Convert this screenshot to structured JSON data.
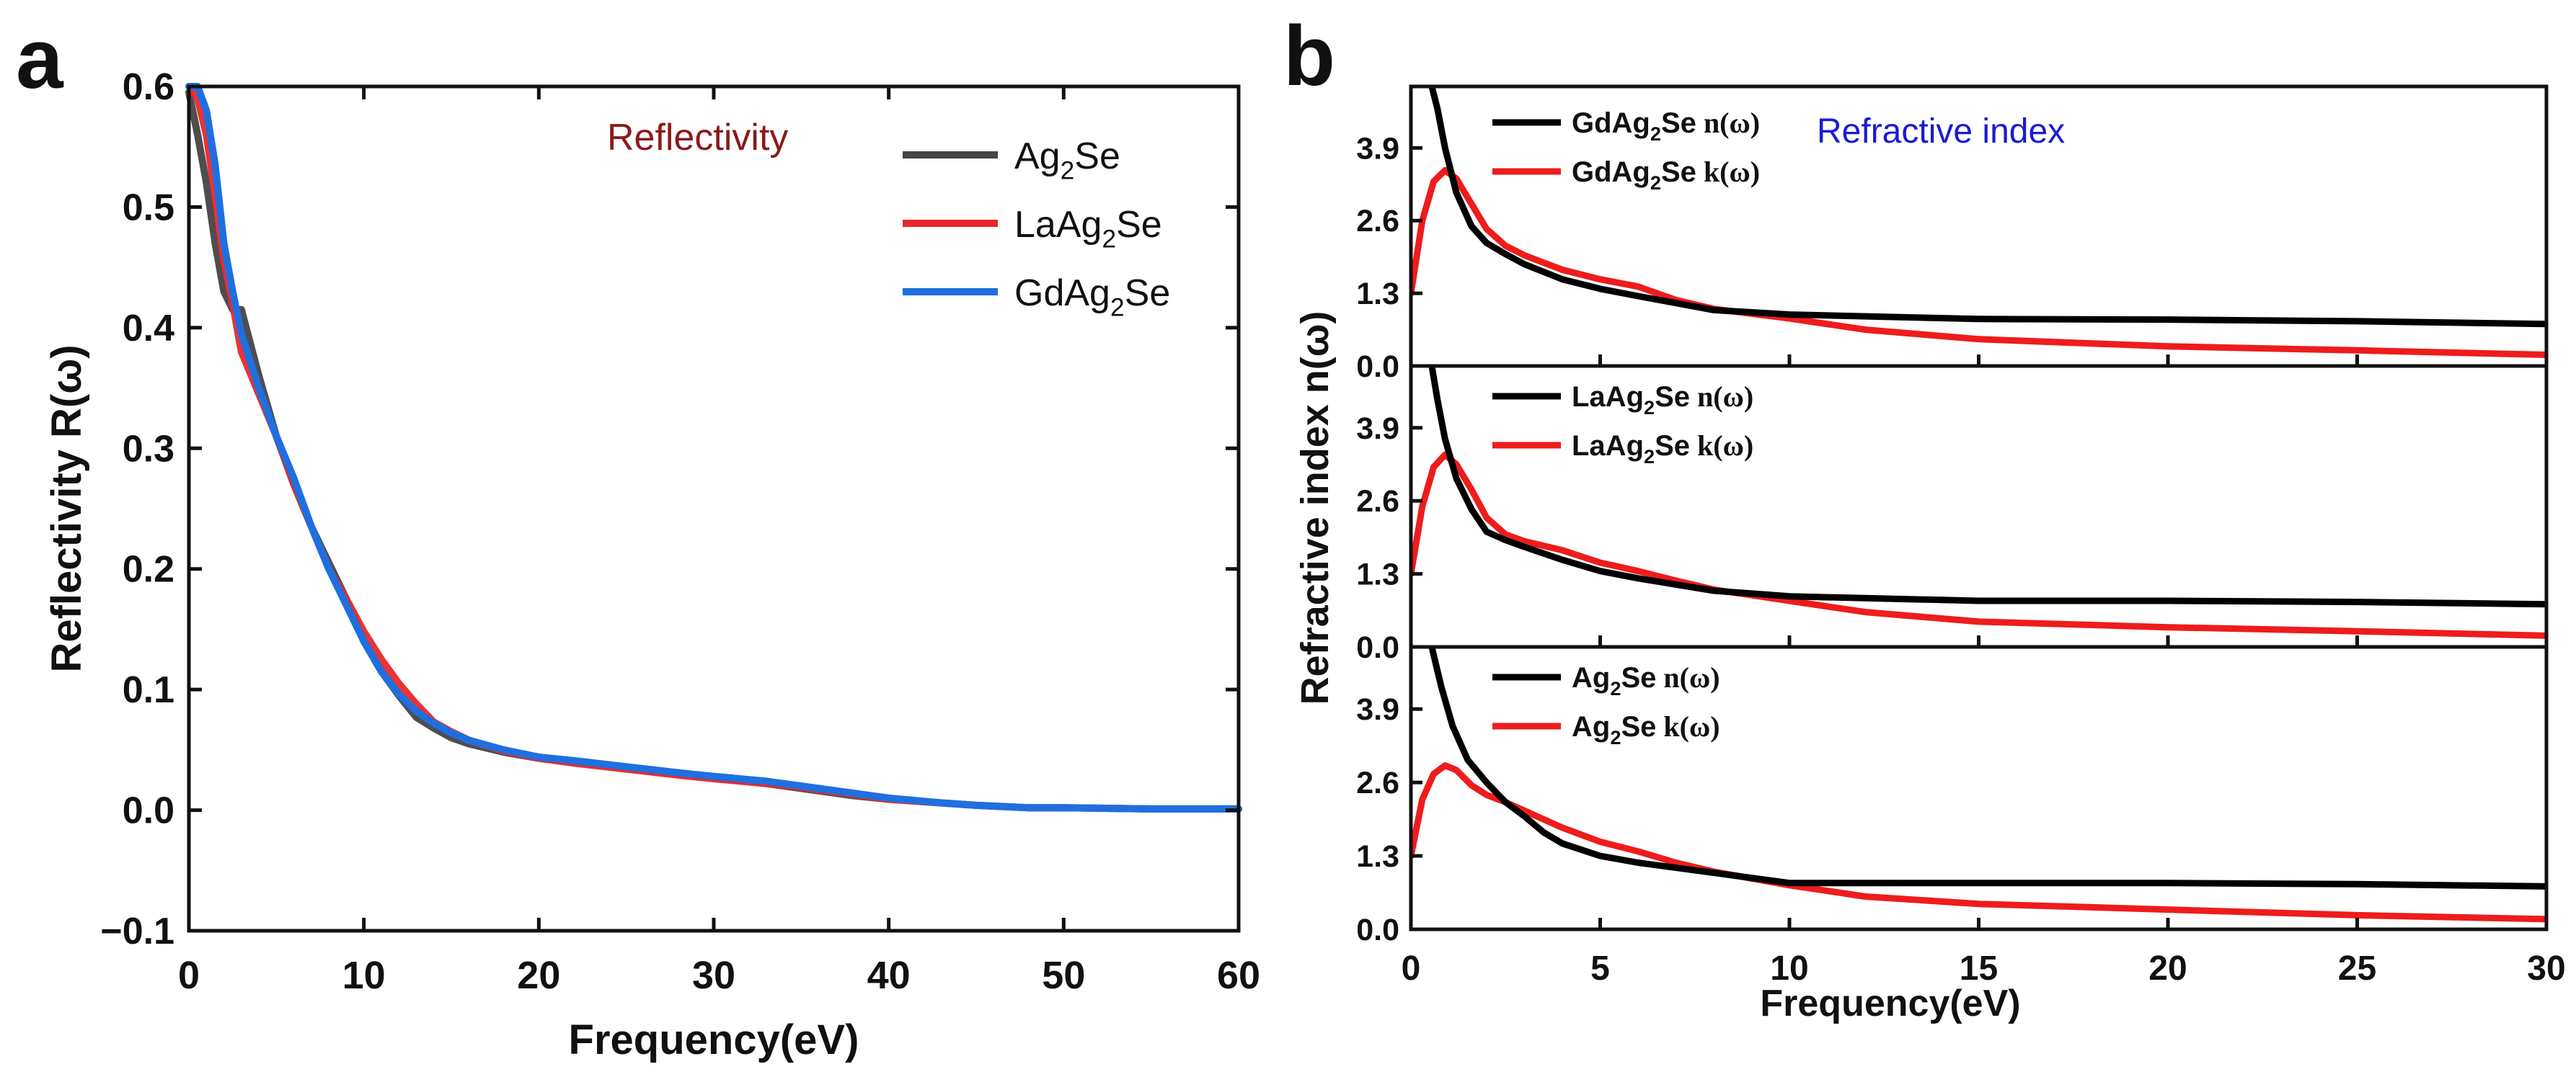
{
  "figure": {
    "panel_a_letter": "a",
    "panel_b_letter": "b"
  },
  "chart_data": [
    {
      "type": "line",
      "panel": "a",
      "title": "",
      "annotation": "Reflectivity",
      "xlabel": "Frequency(eV)",
      "ylabel": "Reflectivity R(ω)",
      "xlim": [
        0,
        60
      ],
      "ylim": [
        -0.1,
        0.6
      ],
      "xticks": [
        0,
        10,
        20,
        30,
        40,
        50,
        60
      ],
      "yticks": [
        -0.1,
        0.0,
        0.1,
        0.2,
        0.3,
        0.4,
        0.5,
        0.6
      ],
      "legend_position": "top-right",
      "colors": {
        "annotation": "#8b1a1a"
      },
      "series": [
        {
          "name": "Ag2Se",
          "legend_base": "Ag",
          "legend_sub": "2",
          "legend_tail": "Se",
          "color": "#444444",
          "x": [
            0,
            0.5,
            1,
            1.5,
            2,
            2.5,
            3,
            4,
            5,
            6,
            7,
            8,
            9,
            10,
            11,
            12,
            13,
            14,
            15,
            16,
            18,
            20,
            22,
            25,
            28,
            30,
            33,
            35,
            38,
            40,
            43,
            45,
            48,
            50,
            55,
            60
          ],
          "y": [
            0.595,
            0.56,
            0.52,
            0.47,
            0.43,
            0.415,
            0.415,
            0.36,
            0.31,
            0.27,
            0.235,
            0.205,
            0.175,
            0.14,
            0.115,
            0.095,
            0.077,
            0.068,
            0.06,
            0.055,
            0.048,
            0.043,
            0.04,
            0.035,
            0.03,
            0.027,
            0.022,
            0.018,
            0.012,
            0.009,
            0.006,
            0.004,
            0.002,
            0.002,
            0.001,
            0.001
          ]
        },
        {
          "name": "LaAg2Se",
          "legend_base": "LaAg",
          "legend_sub": "2",
          "legend_tail": "Se",
          "color": "#e8282b",
          "x": [
            0,
            0.5,
            1,
            1.5,
            2,
            2.5,
            3,
            4,
            5,
            6,
            7,
            8,
            9,
            10,
            11,
            12,
            13,
            14,
            15,
            16,
            18,
            20,
            22,
            25,
            28,
            30,
            33,
            35,
            38,
            40,
            43,
            45,
            48,
            50,
            55,
            60
          ],
          "y": [
            0.6,
            0.59,
            0.56,
            0.51,
            0.455,
            0.42,
            0.38,
            0.345,
            0.31,
            0.27,
            0.235,
            0.2,
            0.175,
            0.148,
            0.125,
            0.105,
            0.088,
            0.073,
            0.065,
            0.058,
            0.049,
            0.043,
            0.039,
            0.034,
            0.029,
            0.026,
            0.022,
            0.019,
            0.013,
            0.009,
            0.006,
            0.004,
            0.002,
            0.002,
            0.001,
            0.001
          ]
        },
        {
          "name": "GdAg2Se",
          "legend_base": "GdAg",
          "legend_sub": "2",
          "legend_tail": "Se",
          "color": "#1f6fe0",
          "x": [
            0,
            0.5,
            1,
            1.5,
            2,
            2.5,
            3,
            4,
            5,
            6,
            7,
            8,
            9,
            10,
            11,
            12,
            13,
            14,
            15,
            16,
            18,
            20,
            22,
            25,
            28,
            30,
            33,
            35,
            38,
            40,
            43,
            45,
            48,
            50,
            55,
            60
          ],
          "y": [
            0.6,
            0.6,
            0.58,
            0.535,
            0.47,
            0.43,
            0.395,
            0.35,
            0.31,
            0.275,
            0.235,
            0.2,
            0.17,
            0.14,
            0.115,
            0.096,
            0.082,
            0.072,
            0.064,
            0.058,
            0.05,
            0.044,
            0.041,
            0.036,
            0.031,
            0.028,
            0.024,
            0.02,
            0.014,
            0.01,
            0.006,
            0.004,
            0.002,
            0.002,
            0.001,
            0.001
          ]
        }
      ]
    },
    {
      "type": "line",
      "panel": "b",
      "title": "",
      "annotation": "Refractive index",
      "xlabel": "Frequency(eV)",
      "ylabel": "Refractive index n(ω)",
      "xlim": [
        0,
        30
      ],
      "ylim": [
        0.0,
        5.0
      ],
      "xticks": [
        0,
        5,
        10,
        15,
        20,
        25,
        30
      ],
      "yticks": [
        0.0,
        1.3,
        2.6,
        3.9
      ],
      "legend_position": "top-left",
      "colors": {
        "annotation": "#1a1ad6",
        "n": "#000000",
        "k": "#ee1c1c"
      },
      "subplots": [
        {
          "compound": "GdAg2Se",
          "legend_base": "GdAg",
          "legend_sub": "2",
          "legend_tail": "Se",
          "n_label": "n(ω)",
          "k_label": "k(ω)",
          "n": {
            "x": [
              0.55,
              0.7,
              0.9,
              1.2,
              1.6,
              2,
              2.5,
              3,
              4,
              5,
              6,
              8,
              10,
              15,
              20,
              25,
              30
            ],
            "y": [
              5.0,
              4.6,
              3.9,
              3.1,
              2.5,
              2.2,
              2.0,
              1.82,
              1.55,
              1.38,
              1.25,
              1.0,
              0.92,
              0.84,
              0.83,
              0.8,
              0.75
            ]
          },
          "k": {
            "x": [
              0,
              0.3,
              0.6,
              0.9,
              1.2,
              1.6,
              2,
              2.5,
              3,
              4,
              5,
              6,
              7,
              8,
              10,
              12,
              15,
              20,
              25,
              30
            ],
            "y": [
              1.3,
              2.6,
              3.3,
              3.5,
              3.35,
              2.9,
              2.45,
              2.15,
              1.98,
              1.72,
              1.55,
              1.42,
              1.18,
              1.02,
              0.85,
              0.65,
              0.48,
              0.35,
              0.28,
              0.2
            ]
          }
        },
        {
          "compound": "LaAg2Se",
          "legend_base": "LaAg",
          "legend_sub": "2",
          "legend_tail": "Se",
          "n_label": "n(ω)",
          "k_label": "k(ω)",
          "n": {
            "x": [
              0.55,
              0.7,
              0.9,
              1.2,
              1.6,
              2,
              2.5,
              3,
              4,
              5,
              6,
              8,
              10,
              15,
              20,
              25,
              30
            ],
            "y": [
              5.0,
              4.4,
              3.7,
              3.0,
              2.45,
              2.05,
              1.9,
              1.78,
              1.55,
              1.35,
              1.22,
              1.0,
              0.9,
              0.82,
              0.82,
              0.8,
              0.76
            ]
          },
          "k": {
            "x": [
              0,
              0.3,
              0.6,
              0.9,
              1.2,
              1.6,
              2,
              2.5,
              3,
              4,
              5,
              6,
              7,
              8,
              10,
              12,
              15,
              20,
              25,
              30
            ],
            "y": [
              1.3,
              2.5,
              3.2,
              3.42,
              3.25,
              2.8,
              2.3,
              2.0,
              1.88,
              1.72,
              1.5,
              1.35,
              1.18,
              1.02,
              0.82,
              0.62,
              0.45,
              0.35,
              0.28,
              0.2
            ]
          }
        },
        {
          "compound": "Ag2Se",
          "legend_base": "Ag",
          "legend_sub": "2",
          "legend_tail": "Se",
          "n_label": "n(ω)",
          "k_label": "k(ω)",
          "n": {
            "x": [
              0.55,
              0.8,
              1.1,
              1.5,
              2,
              2.5,
              3,
              3.5,
              4,
              5,
              6,
              8,
              10,
              15,
              20,
              25,
              30
            ],
            "y": [
              5.0,
              4.3,
              3.6,
              3.0,
              2.6,
              2.25,
              2.0,
              1.72,
              1.52,
              1.3,
              1.18,
              1.0,
              0.82,
              0.82,
              0.82,
              0.8,
              0.76
            ]
          },
          "k": {
            "x": [
              0,
              0.3,
              0.6,
              0.9,
              1.2,
              1.6,
              2,
              2.5,
              3,
              4,
              5,
              6,
              7,
              8,
              10,
              12,
              15,
              20,
              25,
              30
            ],
            "y": [
              1.3,
              2.3,
              2.75,
              2.9,
              2.82,
              2.55,
              2.38,
              2.25,
              2.1,
              1.8,
              1.55,
              1.38,
              1.18,
              1.02,
              0.78,
              0.58,
              0.45,
              0.35,
              0.25,
              0.18
            ]
          }
        }
      ]
    }
  ]
}
